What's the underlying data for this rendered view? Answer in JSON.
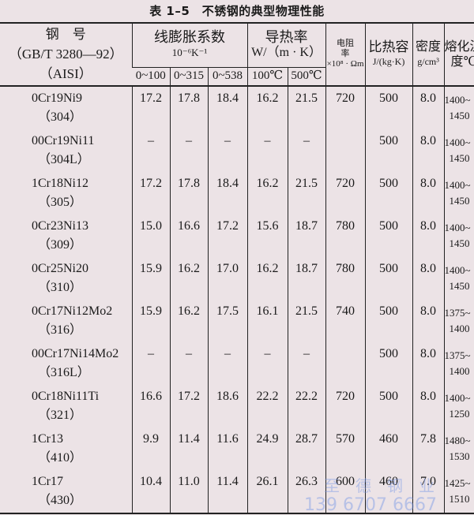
{
  "title": "表 1–5　不锈钢的典型物理性能",
  "headers": {
    "grade": [
      "钢　号",
      "（GB/T 3280—92）",
      "（AISI）"
    ],
    "expansion": [
      "线膨胀系数",
      "10⁻⁶K⁻¹"
    ],
    "expansion_ranges": [
      "0~100",
      "0~315",
      "0~538"
    ],
    "conductivity": [
      "导热率",
      "W/（m · K）"
    ],
    "conductivity_temps": [
      "100℃",
      "500℃"
    ],
    "resistivity": [
      "电阻",
      "率",
      "×10⁸ · Ωm"
    ],
    "specific_heat": [
      "比热容",
      "J/(kg·K)"
    ],
    "density": [
      "密度",
      "g/cm³"
    ],
    "melting": [
      "熔化温",
      "度℃"
    ]
  },
  "rows": [
    {
      "grade": "0Cr19Ni9",
      "aisi": "（304）",
      "e1": "17.2",
      "e2": "17.8",
      "e3": "18.4",
      "k1": "16.2",
      "k2": "21.5",
      "rho": "720",
      "cp": "500",
      "d": "8.0",
      "m1": "1400~",
      "m2": "1450"
    },
    {
      "grade": "00Cr19Ni11",
      "aisi": "（304L）",
      "e1": "–",
      "e2": "–",
      "e3": "–",
      "k1": "–",
      "k2": "–",
      "rho": "",
      "cp": "500",
      "d": "8.0",
      "m1": "1400~",
      "m2": "1450"
    },
    {
      "grade": "1Cr18Ni12",
      "aisi": "（305）",
      "e1": "17.2",
      "e2": "17.8",
      "e3": "18.4",
      "k1": "16.2",
      "k2": "21.5",
      "rho": "720",
      "cp": "500",
      "d": "8.0",
      "m1": "1400~",
      "m2": "1450"
    },
    {
      "grade": "0Cr23Ni13",
      "aisi": "（309）",
      "e1": "15.0",
      "e2": "16.6",
      "e3": "17.2",
      "k1": "15.6",
      "k2": "18.7",
      "rho": "780",
      "cp": "500",
      "d": "8.0",
      "m1": "1400~",
      "m2": "1450"
    },
    {
      "grade": "0Cr25Ni20",
      "aisi": "（310）",
      "e1": "15.9",
      "e2": "16.2",
      "e3": "17.0",
      "k1": "16.2",
      "k2": "18.7",
      "rho": "780",
      "cp": "500",
      "d": "8.0",
      "m1": "1400~",
      "m2": "1450"
    },
    {
      "grade": "0Cr17Ni12Mo2",
      "aisi": "（316）",
      "e1": "15.9",
      "e2": "16.2",
      "e3": "17.5",
      "k1": "16.1",
      "k2": "21.5",
      "rho": "740",
      "cp": "500",
      "d": "8.0",
      "m1": "1375~",
      "m2": "1400"
    },
    {
      "grade": "00Cr17Ni14Mo2",
      "aisi": "（316L）",
      "e1": "–",
      "e2": "–",
      "e3": "–",
      "k1": "–",
      "k2": "–",
      "rho": "",
      "cp": "500",
      "d": "8.0",
      "m1": "1375~",
      "m2": "1400"
    },
    {
      "grade": "0Cr18Ni11Ti",
      "aisi": "（321）",
      "e1": "16.6",
      "e2": "17.2",
      "e3": "18.6",
      "k1": "22.2",
      "k2": "22.2",
      "rho": "720",
      "cp": "500",
      "d": "8.0",
      "m1": "1400~",
      "m2": "1250"
    },
    {
      "grade": "1Cr13",
      "aisi": "（410）",
      "e1": "9.9",
      "e2": "11.4",
      "e3": "11.6",
      "k1": "24.9",
      "k2": "28.7",
      "rho": "570",
      "cp": "460",
      "d": "7.8",
      "m1": "1480~",
      "m2": "1530"
    },
    {
      "grade": "1Cr17",
      "aisi": "（430）",
      "e1": "10.4",
      "e2": "11.0",
      "e3": "11.4",
      "k1": "26.1",
      "k2": "26.3",
      "rho": "600",
      "cp": "460",
      "d": "7.0",
      "m1": "1425~",
      "m2": "1510"
    }
  ],
  "watermark": {
    "name": "至　德　钢　业",
    "phone": "139 6707 6667"
  }
}
